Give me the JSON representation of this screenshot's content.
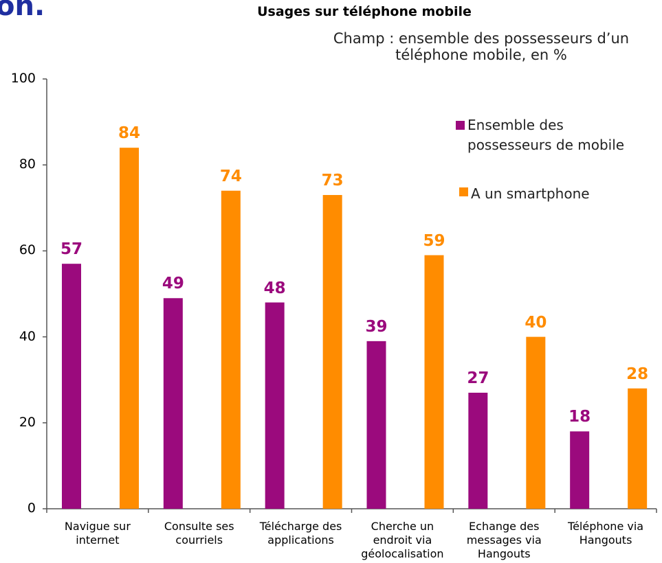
{
  "page_heading": "on.",
  "chart_data": {
    "type": "bar",
    "title": "Usages sur téléphone mobile",
    "subtitle": "Champ : ensemble des possesseurs d’un téléphone mobile, en %",
    "categories": [
      "Navigue sur\ninternet",
      "Consulte ses\ncourriels",
      "Télécharge des\napplications",
      "Cherche un\nendroit via\ngéolocalisation",
      "Echange des\nmessages via\nHangouts",
      "Téléphone via\nHangouts"
    ],
    "series": [
      {
        "name": "Ensemble des\npossesseurs de mobile",
        "color": "#9b0a7d",
        "values": [
          57,
          49,
          48,
          39,
          27,
          18
        ]
      },
      {
        "name": " A un smartphone",
        "color": "#ff8c00",
        "values": [
          84,
          74,
          73,
          59,
          40,
          28
        ]
      }
    ],
    "ylim": [
      0,
      100
    ],
    "yticks": [
      0,
      20,
      40,
      60,
      80,
      100
    ],
    "legend": "right",
    "grid": false
  }
}
